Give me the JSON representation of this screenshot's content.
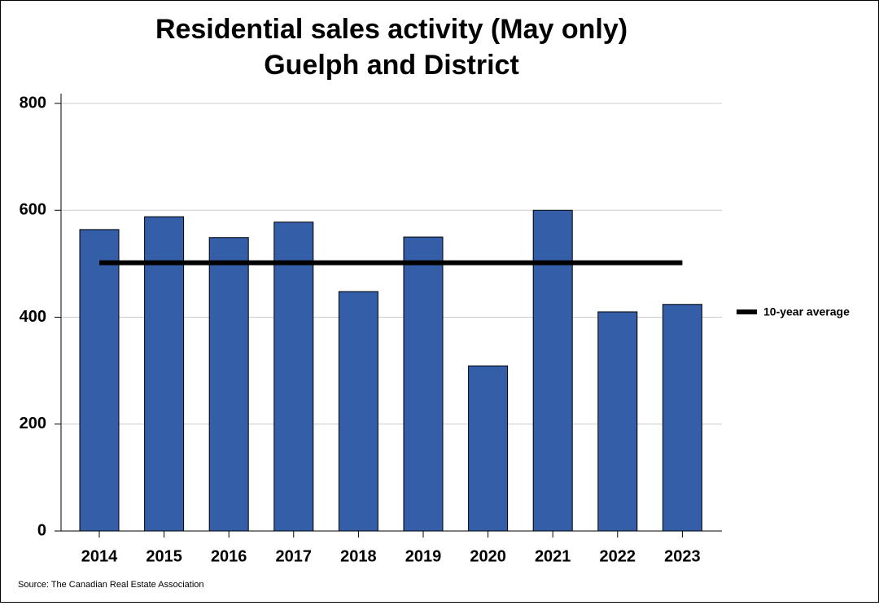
{
  "chart_data": {
    "type": "bar",
    "title": "Residential sales activity (May only)",
    "subtitle": "Guelph and District",
    "categories": [
      "2014",
      "2015",
      "2016",
      "2017",
      "2018",
      "2019",
      "2020",
      "2021",
      "2022",
      "2023"
    ],
    "values": [
      564,
      588,
      549,
      578,
      448,
      550,
      309,
      600,
      410,
      424
    ],
    "color": "#355ea9",
    "average": {
      "name": "10-year average",
      "value": 502,
      "color": "#000000"
    },
    "ylim": [
      0,
      800
    ],
    "yticks": [
      0,
      200,
      400,
      600,
      800
    ],
    "grid": true,
    "legend": "right",
    "source": "Source: The Canadian Real Estate Association"
  }
}
